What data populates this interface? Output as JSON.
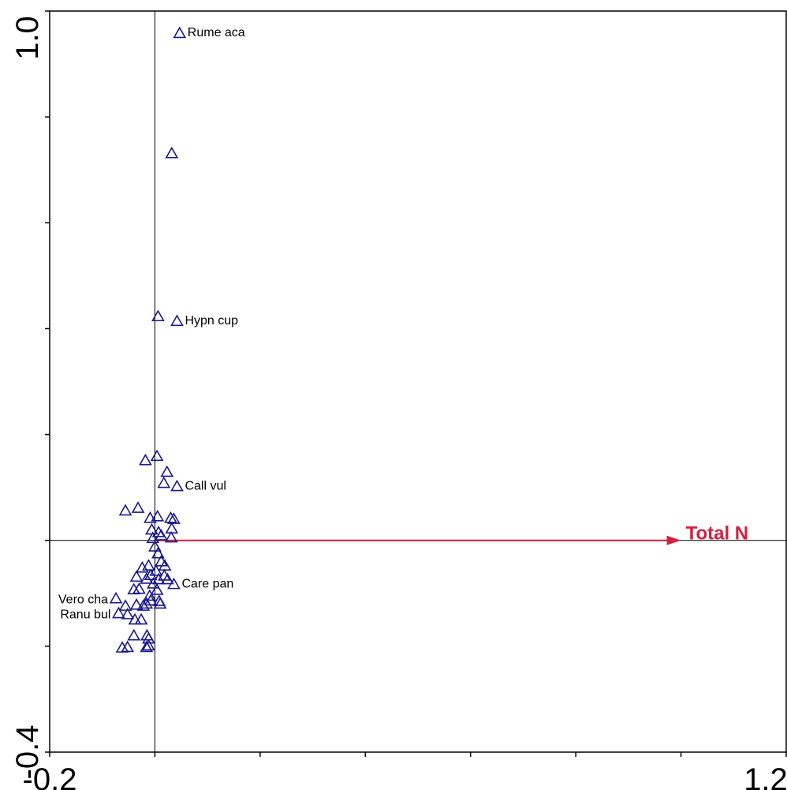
{
  "chart_data": {
    "type": "scatter",
    "xlim": [
      -0.2,
      1.2
    ],
    "ylim": [
      -0.4,
      1.0
    ],
    "x_tick_labels": [
      "-0.2",
      "1.2"
    ],
    "y_tick_labels": [
      "-0.4",
      "1.0"
    ],
    "x_ticks": [
      -0.2,
      0.0,
      0.2,
      0.4,
      0.6,
      0.8,
      1.0,
      1.2
    ],
    "y_ticks": [
      -0.4,
      -0.2,
      0.0,
      0.2,
      0.4,
      0.6,
      0.8,
      1.0
    ],
    "grid": false,
    "marker": "triangle-open",
    "marker_color": "#1a1a8c",
    "axis_lines": [
      {
        "orientation": "vertical",
        "at": 0.0
      },
      {
        "orientation": "horizontal",
        "at": 0.0
      }
    ],
    "arrows": [
      {
        "label": "Total N",
        "from": [
          0.0,
          0.0
        ],
        "to": [
          1.0,
          0.0
        ],
        "color": "#d4203c"
      }
    ],
    "points": [
      {
        "x": 0.047,
        "y": 0.958,
        "label": "Rume aca"
      },
      {
        "x": 0.032,
        "y": 0.731
      },
      {
        "x": 0.006,
        "y": 0.423
      },
      {
        "x": 0.042,
        "y": 0.414,
        "label": "Hypn cup"
      },
      {
        "x": -0.018,
        "y": 0.151
      },
      {
        "x": 0.004,
        "y": 0.159
      },
      {
        "x": 0.023,
        "y": 0.129
      },
      {
        "x": 0.017,
        "y": 0.108
      },
      {
        "x": 0.042,
        "y": 0.102,
        "label": "Call vul"
      },
      {
        "x": -0.056,
        "y": 0.056
      },
      {
        "x": -0.032,
        "y": 0.061
      },
      {
        "x": -0.009,
        "y": 0.042
      },
      {
        "x": 0.005,
        "y": 0.045
      },
      {
        "x": 0.03,
        "y": 0.042
      },
      {
        "x": 0.036,
        "y": 0.04
      },
      {
        "x": -0.006,
        "y": 0.02
      },
      {
        "x": 0.007,
        "y": 0.015
      },
      {
        "x": 0.032,
        "y": 0.022
      },
      {
        "x": -0.004,
        "y": 0.004
      },
      {
        "x": 0.012,
        "y": 0.009
      },
      {
        "x": 0.031,
        "y": 0.005
      },
      {
        "x": 0.0,
        "y": -0.012
      },
      {
        "x": 0.006,
        "y": -0.025
      },
      {
        "x": 0.012,
        "y": -0.04
      },
      {
        "x": -0.024,
        "y": -0.052
      },
      {
        "x": -0.012,
        "y": -0.048
      },
      {
        "x": 0.002,
        "y": -0.058
      },
      {
        "x": 0.019,
        "y": -0.048
      },
      {
        "x": -0.008,
        "y": -0.066
      },
      {
        "x": -0.035,
        "y": -0.069
      },
      {
        "x": -0.016,
        "y": -0.073
      },
      {
        "x": 0.007,
        "y": -0.074
      },
      {
        "x": 0.018,
        "y": -0.067
      },
      {
        "x": 0.024,
        "y": -0.074
      },
      {
        "x": -0.003,
        "y": -0.082
      },
      {
        "x": 0.036,
        "y": -0.083,
        "label": "Care pan"
      },
      {
        "x": -0.04,
        "y": -0.093
      },
      {
        "x": -0.03,
        "y": -0.092
      },
      {
        "x": 0.004,
        "y": -0.094
      },
      {
        "x": -0.01,
        "y": -0.105
      },
      {
        "x": -0.074,
        "y": -0.11,
        "label": "Vero cha"
      },
      {
        "x": -0.056,
        "y": -0.124
      },
      {
        "x": -0.035,
        "y": -0.122
      },
      {
        "x": -0.016,
        "y": -0.12
      },
      {
        "x": -0.008,
        "y": -0.114
      },
      {
        "x": 0.008,
        "y": -0.115
      },
      {
        "x": 0.01,
        "y": -0.12
      },
      {
        "x": -0.022,
        "y": -0.124
      },
      {
        "x": -0.069,
        "y": -0.138,
        "label": "Ranu bul"
      },
      {
        "x": -0.052,
        "y": -0.14
      },
      {
        "x": -0.038,
        "y": -0.15
      },
      {
        "x": -0.026,
        "y": -0.15
      },
      {
        "x": -0.04,
        "y": -0.18
      },
      {
        "x": -0.015,
        "y": -0.18
      },
      {
        "x": -0.012,
        "y": -0.186
      },
      {
        "x": -0.062,
        "y": -0.203
      },
      {
        "x": -0.052,
        "y": -0.202
      },
      {
        "x": -0.012,
        "y": -0.199
      },
      {
        "x": -0.016,
        "y": -0.202
      }
    ]
  }
}
